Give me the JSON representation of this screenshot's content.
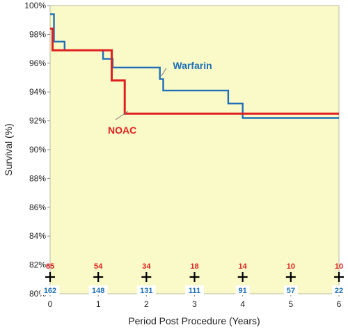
{
  "chart_data": {
    "type": "line",
    "xlabel": "Period Post Procedure (Years)",
    "ylabel": "Survival (%)",
    "xlim": [
      0,
      6
    ],
    "ylim": [
      80,
      100
    ],
    "x_ticks": [
      0,
      1,
      2,
      3,
      4,
      5,
      6
    ],
    "y_ticks": [
      "80%",
      "82%",
      "84%",
      "86%",
      "88%",
      "90%",
      "92%",
      "94%",
      "96%",
      "98%",
      "100%"
    ],
    "y_tick_values": [
      80,
      82,
      84,
      86,
      88,
      90,
      92,
      94,
      96,
      98,
      100
    ],
    "grid": false,
    "background_color": "#fafac8",
    "series": [
      {
        "name": "Warfarin",
        "color": "#1f6fb8",
        "steps": [
          [
            0,
            99.4
          ],
          [
            0.08,
            97.5
          ],
          [
            0.3,
            96.9
          ],
          [
            1.1,
            96.3
          ],
          [
            1.3,
            95.7
          ],
          [
            2.28,
            94.9
          ],
          [
            2.35,
            94.1
          ],
          [
            3.7,
            93.2
          ],
          [
            4.0,
            92.2
          ],
          [
            6.0,
            92.2
          ]
        ]
      },
      {
        "name": "NOAC",
        "color": "#e02020",
        "steps": [
          [
            0,
            98.4
          ],
          [
            0.05,
            96.9
          ],
          [
            1.28,
            94.8
          ],
          [
            1.55,
            92.5
          ],
          [
            6.0,
            92.5
          ]
        ]
      }
    ],
    "annotations": [
      {
        "text": "Warfarin",
        "series": "Warfarin",
        "x": 2.55,
        "y": 95.6
      },
      {
        "text": "NOAC",
        "series": "NOAC",
        "x": 1.2,
        "y": 91.1
      }
    ],
    "at_risk": {
      "NOAC": [
        "65",
        "54",
        "34",
        "18",
        "14",
        "10",
        "10"
      ],
      "Warfarin": [
        "162",
        "148",
        "131",
        "111",
        "91",
        "57",
        "22"
      ]
    }
  }
}
